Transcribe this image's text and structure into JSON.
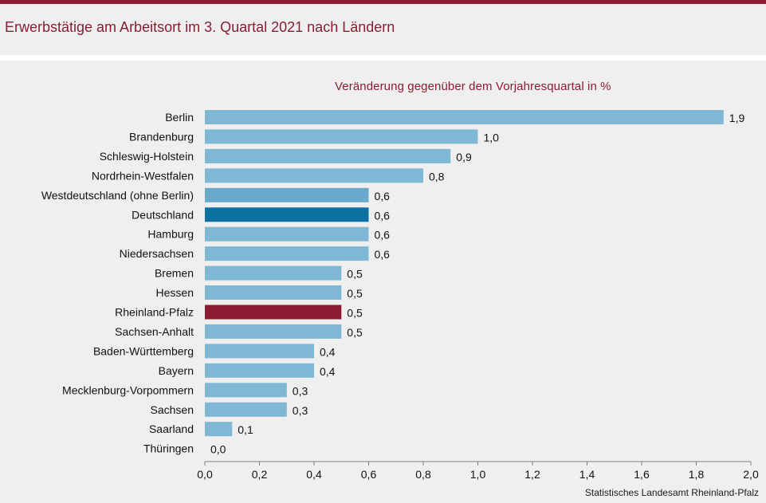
{
  "title": "Erwerbstätige am Arbeitsort im 3. Quartal 2021 nach Ländern",
  "source": "Statistisches Landesamt Rheinland-Pfalz",
  "colors": {
    "accent": "#8c1c32",
    "bar_default": "#7fb8d4",
    "bar_west": "#69a9c9",
    "bar_germany": "#0a71a0",
    "bar_rlp": "#8c1c32"
  },
  "chart_data": {
    "type": "bar",
    "orientation": "horizontal",
    "title": "Veränderung gegenüber dem Vorjahresquartal in %",
    "categories": [
      "Berlin",
      "Brandenburg",
      "Schleswig-Holstein",
      "Nordrhein-Westfalen",
      "Westdeutschland (ohne Berlin)",
      "Deutschland",
      "Hamburg",
      "Niedersachsen",
      "Bremen",
      "Hessen",
      "Rheinland-Pfalz",
      "Sachsen-Anhalt",
      "Baden-Württemberg",
      "Bayern",
      "Mecklenburg-Vorpommern",
      "Sachsen",
      "Saarland",
      "Thüringen"
    ],
    "values": [
      1.9,
      1.0,
      0.9,
      0.8,
      0.6,
      0.6,
      0.6,
      0.6,
      0.5,
      0.5,
      0.5,
      0.5,
      0.4,
      0.4,
      0.3,
      0.3,
      0.1,
      0.0
    ],
    "value_labels": [
      "1,9",
      "1,0",
      "0,9",
      "0,8",
      "0,6",
      "0,6",
      "0,6",
      "0,6",
      "0,5",
      "0,5",
      "0,5",
      "0,5",
      "0,4",
      "0,4",
      "0,3",
      "0,3",
      "0,1",
      "0,0"
    ],
    "bar_colors": [
      "bar_default",
      "bar_default",
      "bar_default",
      "bar_default",
      "bar_west",
      "bar_germany",
      "bar_default",
      "bar_default",
      "bar_default",
      "bar_default",
      "bar_rlp",
      "bar_default",
      "bar_default",
      "bar_default",
      "bar_default",
      "bar_default",
      "bar_default",
      "bar_default"
    ],
    "xlim": [
      0,
      2.0
    ],
    "xticks": [
      0,
      0.2,
      0.4,
      0.6,
      0.8,
      1.0,
      1.2,
      1.4,
      1.6,
      1.8,
      2.0
    ],
    "xtick_labels": [
      "0,0",
      "0,2",
      "0,4",
      "0,6",
      "0,8",
      "1,0",
      "1,2",
      "1,4",
      "1,6",
      "1,8",
      "2,0"
    ],
    "grid": false
  }
}
